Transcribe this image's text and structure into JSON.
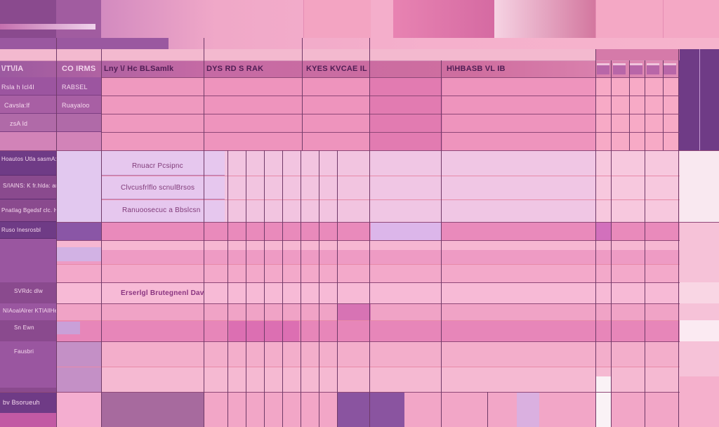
{
  "colors": {
    "sidebar_purple": "#8a4a8e",
    "deep_purple": "#6f3b86",
    "header_pink": "#cf6c9e",
    "cell_pink": "#ec93bd",
    "cell_light": "#f6c4dc",
    "lavender": "#e2c8ef",
    "grid_line": "#6f3a68",
    "accent_rose": "#e88aa8"
  },
  "header": {
    "cols": [
      "\\/T\\/lA",
      "CO IRMS",
      "Lny \\/ Hc BLSamlk",
      "DYS RD S RAK",
      "KYES KVCAE IL",
      "H\\HBASB VL IB"
    ]
  },
  "sidebar": {
    "top_rows": [
      "Rsla h Icl4I",
      "Cavsla:lf",
      "zsA ld"
    ],
    "top_rows_right": [
      "RABSEL",
      "Ruayaloo"
    ],
    "rows": [
      "Hoautos Utla\nsasmA: odn.ub",
      "S/IAlNS: K\nfr.hlda: ar",
      "Pnatlag Bgedsf\nclc. Hendaull",
      "Ruso Inesrosbl",
      "SVRdc dlw",
      "NIAoalAlrer\nKTlAllHenc",
      "Sn Ewn",
      "Fausbri",
      "bv  Bsorueuh"
    ]
  },
  "body_text": {
    "row1": "Rnuacr Pcsipnc",
    "row2": "Clvcusfrlflo   scnulBrsos",
    "row3": "Ranuoosecuc a Bbslcsn",
    "row4": "Erserlgl Brutegnenl Dav"
  }
}
